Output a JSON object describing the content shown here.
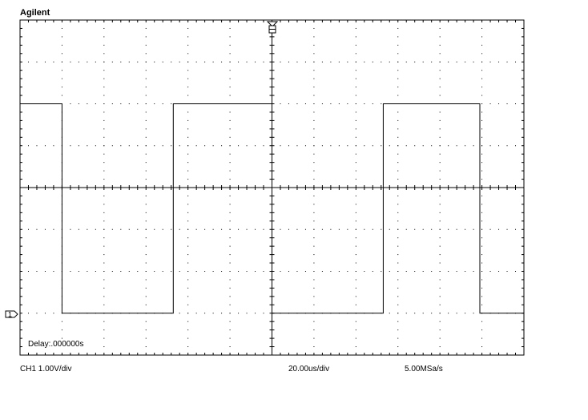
{
  "header": {
    "brand": "Agilent"
  },
  "display": {
    "delay_text": "Delay:.000000s",
    "channel_marker_label": "1",
    "grid": {
      "major_divisions_x": 12,
      "major_divisions_y": 8,
      "minor_dots_per_division": 5
    },
    "trace_color": "#000000",
    "grid_color": "#000000"
  },
  "status_bar": {
    "ch1_scale": "CH1 1.00V/div",
    "timebase": "20.00us/div",
    "sample_rate": "5.00MSa/s"
  },
  "chart_data": {
    "type": "line",
    "xlabel": "",
    "ylabel": "",
    "x_units": "divisions from trigger (20.00us/div)",
    "y_units": "volts (1.00V/div, ground at channel marker)",
    "xlim": [
      -6,
      6
    ],
    "ylim": [
      -1,
      7
    ],
    "series": [
      {
        "x": [
          -6.0,
          -5.0,
          -5.0,
          -2.35,
          -2.35,
          0.0,
          0.0,
          2.65,
          2.65,
          4.95,
          4.95,
          6.0
        ],
        "y": [
          5.0,
          5.0,
          0.0,
          0.0,
          5.0,
          5.0,
          0.0,
          0.0,
          5.0,
          5.0,
          0.0,
          0.0
        ]
      }
    ]
  }
}
